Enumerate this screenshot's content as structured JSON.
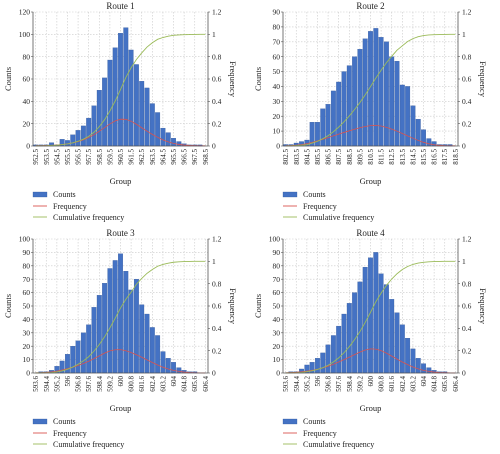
{
  "colors": {
    "bar": "#4472c4",
    "bar_edge": "#2f5597",
    "frequency": "#d9534f",
    "cumulative": "#9bbb59",
    "grid": "#c9c9c9",
    "axis": "#555555"
  },
  "legend_labels": {
    "counts": "Counts",
    "frequency": "Frequency",
    "cumulative": "Cumulative frequency"
  },
  "chart_data": [
    {
      "type": "bar",
      "title": "Route 1",
      "xlabel": "Group",
      "ylabel": "Counts",
      "y2label": "Frequency",
      "ylim": [
        0,
        120
      ],
      "yticks": [
        0,
        20,
        40,
        60,
        80,
        100,
        120
      ],
      "y2lim": [
        0,
        1.2
      ],
      "y2ticks": [
        "0",
        "0.2",
        "0.4",
        "0.6",
        "0.8",
        "1",
        "1.2"
      ],
      "grid": true,
      "legend": "bottom-left",
      "tick_labels": [
        "952.5",
        "953.5",
        "954.5",
        "955.5",
        "956.5",
        "957.5",
        "958.5",
        "959.5",
        "960.5",
        "961.5",
        "962.5",
        "963.5",
        "964.5",
        "965.5",
        "966.5",
        "967.5",
        "968.5"
      ],
      "values": [
        1,
        1,
        1,
        3,
        1,
        6,
        5,
        10,
        14,
        18,
        25,
        36,
        50,
        61,
        77,
        88,
        101,
        106,
        86,
        73,
        58,
        52,
        38,
        30,
        16,
        12,
        7,
        4,
        2,
        1,
        1,
        1,
        0
      ]
    },
    {
      "type": "bar",
      "title": "Route 2",
      "xlabel": "Group",
      "ylabel": "Counts",
      "y2label": "Frequency",
      "ylim": [
        0,
        90
      ],
      "yticks": [
        0,
        10,
        20,
        30,
        40,
        50,
        60,
        70,
        80,
        90
      ],
      "y2lim": [
        0,
        1.2
      ],
      "y2ticks": [
        "0",
        "0.2",
        "0.4",
        "0.6",
        "0.8",
        "1",
        "1.2"
      ],
      "grid": true,
      "legend": "bottom-left",
      "tick_labels": [
        "802.5",
        "803.5",
        "804.5",
        "805.5",
        "806.5",
        "807.5",
        "808.5",
        "809.5",
        "810.5",
        "811.5",
        "812.5",
        "813.5",
        "814.5",
        "815.5",
        "816.5",
        "817.5",
        "818.5"
      ],
      "values": [
        1,
        1,
        2,
        3,
        4,
        16,
        16,
        25,
        28,
        37,
        43,
        50,
        54,
        60,
        65,
        72,
        77,
        79,
        73,
        70,
        60,
        57,
        41,
        40,
        27,
        18,
        11,
        5,
        3,
        1,
        1,
        1,
        0
      ]
    },
    {
      "type": "bar",
      "title": "Route 3",
      "xlabel": "Group",
      "ylabel": "Counts",
      "y2label": "Frequency",
      "ylim": [
        0,
        100
      ],
      "yticks": [
        0,
        10,
        20,
        30,
        40,
        50,
        60,
        70,
        80,
        90,
        100
      ],
      "y2lim": [
        0,
        1.2
      ],
      "y2ticks": [
        "0",
        "0.2",
        "0.4",
        "0.6",
        "0.8",
        "1",
        "1.2"
      ],
      "grid": true,
      "legend": "bottom-left",
      "tick_labels": [
        "593.6",
        "594.4",
        "595.2",
        "596",
        "596.8",
        "597.6",
        "598.4",
        "599.2",
        "600",
        "600.8",
        "601.6",
        "602.4",
        "603.2",
        "604",
        "604.8",
        "605.6",
        "606.4"
      ],
      "values": [
        0,
        1,
        1,
        2,
        5,
        9,
        14,
        20,
        24,
        30,
        36,
        49,
        58,
        67,
        78,
        84,
        89,
        76,
        62,
        70,
        51,
        44,
        34,
        28,
        16,
        11,
        8,
        4,
        2,
        1,
        1,
        0,
        0
      ]
    },
    {
      "type": "bar",
      "title": "Route 4",
      "xlabel": "Group",
      "ylabel": "Counts",
      "y2label": "Frequency",
      "ylim": [
        0,
        100
      ],
      "yticks": [
        0,
        10,
        20,
        30,
        40,
        50,
        60,
        70,
        80,
        90,
        100
      ],
      "y2lim": [
        0,
        1.2
      ],
      "y2ticks": [
        "0",
        "0.2",
        "0.4",
        "0.6",
        "0.8",
        "1",
        "1.2"
      ],
      "grid": true,
      "legend": "bottom-left",
      "tick_labels": [
        "593.6",
        "594.4",
        "595.2",
        "596",
        "596.8",
        "597.6",
        "598.4",
        "599.2",
        "600",
        "600.8",
        "601.6",
        "602.4",
        "603.2",
        "604",
        "604.8",
        "605.6",
        "606.4"
      ],
      "values": [
        0,
        1,
        1,
        3,
        6,
        8,
        11,
        15,
        21,
        28,
        35,
        44,
        52,
        60,
        68,
        79,
        86,
        90,
        74,
        66,
        55,
        45,
        36,
        26,
        18,
        11,
        7,
        4,
        2,
        1,
        1,
        0,
        0
      ]
    }
  ]
}
